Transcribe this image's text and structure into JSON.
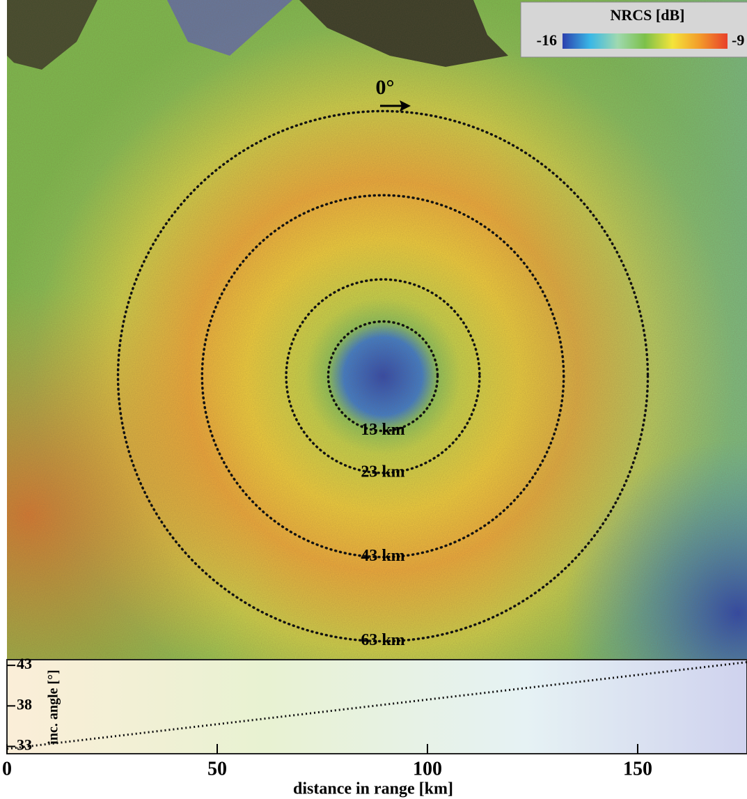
{
  "chart_data": [
    {
      "type": "image",
      "colorbar": {
        "title": "NRCS [dB]",
        "clim": [
          -16,
          -9
        ],
        "cticks": [
          -16,
          -9
        ],
        "colors": [
          "#2b3fae",
          "#39b7e6",
          "#9fd9b0",
          "#7cc04a",
          "#f4e43a",
          "#f39a2a",
          "#e8402a"
        ]
      },
      "annotation": "0°",
      "rings": [
        {
          "radius": 13,
          "label": "13 km"
        },
        {
          "radius": 23,
          "label": "23 km"
        },
        {
          "radius": 43,
          "label": "43 km"
        },
        {
          "radius": 63,
          "label": "63 km"
        }
      ]
    },
    {
      "type": "line",
      "xlabel": "distance in range [km]",
      "ylabel": "inc. angle [°]",
      "x": [
        0,
        176
      ],
      "values": [
        32.7,
        43.4
      ],
      "color": "#111111",
      "xlim": [
        0,
        176
      ],
      "xticks": [
        0,
        50,
        100,
        150
      ],
      "ylim": [
        32.1,
        43.7
      ],
      "yticks": [
        33,
        38,
        43
      ]
    }
  ]
}
